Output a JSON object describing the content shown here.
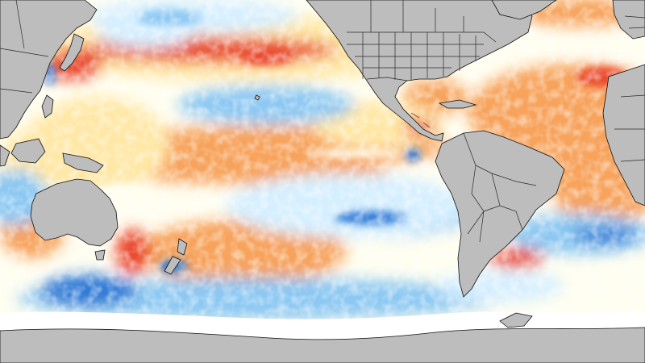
{
  "map": {
    "kind": "sea-surface-temperature-anomaly",
    "colors": {
      "land": "#bdbdbd",
      "ice": "#ffffff",
      "coastline": "#111111",
      "border": "#2a2a2a",
      "neutral_ocean": "#fffef0",
      "warm_light": "#ffe7a6",
      "warm": "#f7a35c",
      "hot": "#ea4a2f",
      "cool_light": "#d6efff",
      "cool": "#8cc8f2",
      "cold": "#2d79d6"
    }
  }
}
